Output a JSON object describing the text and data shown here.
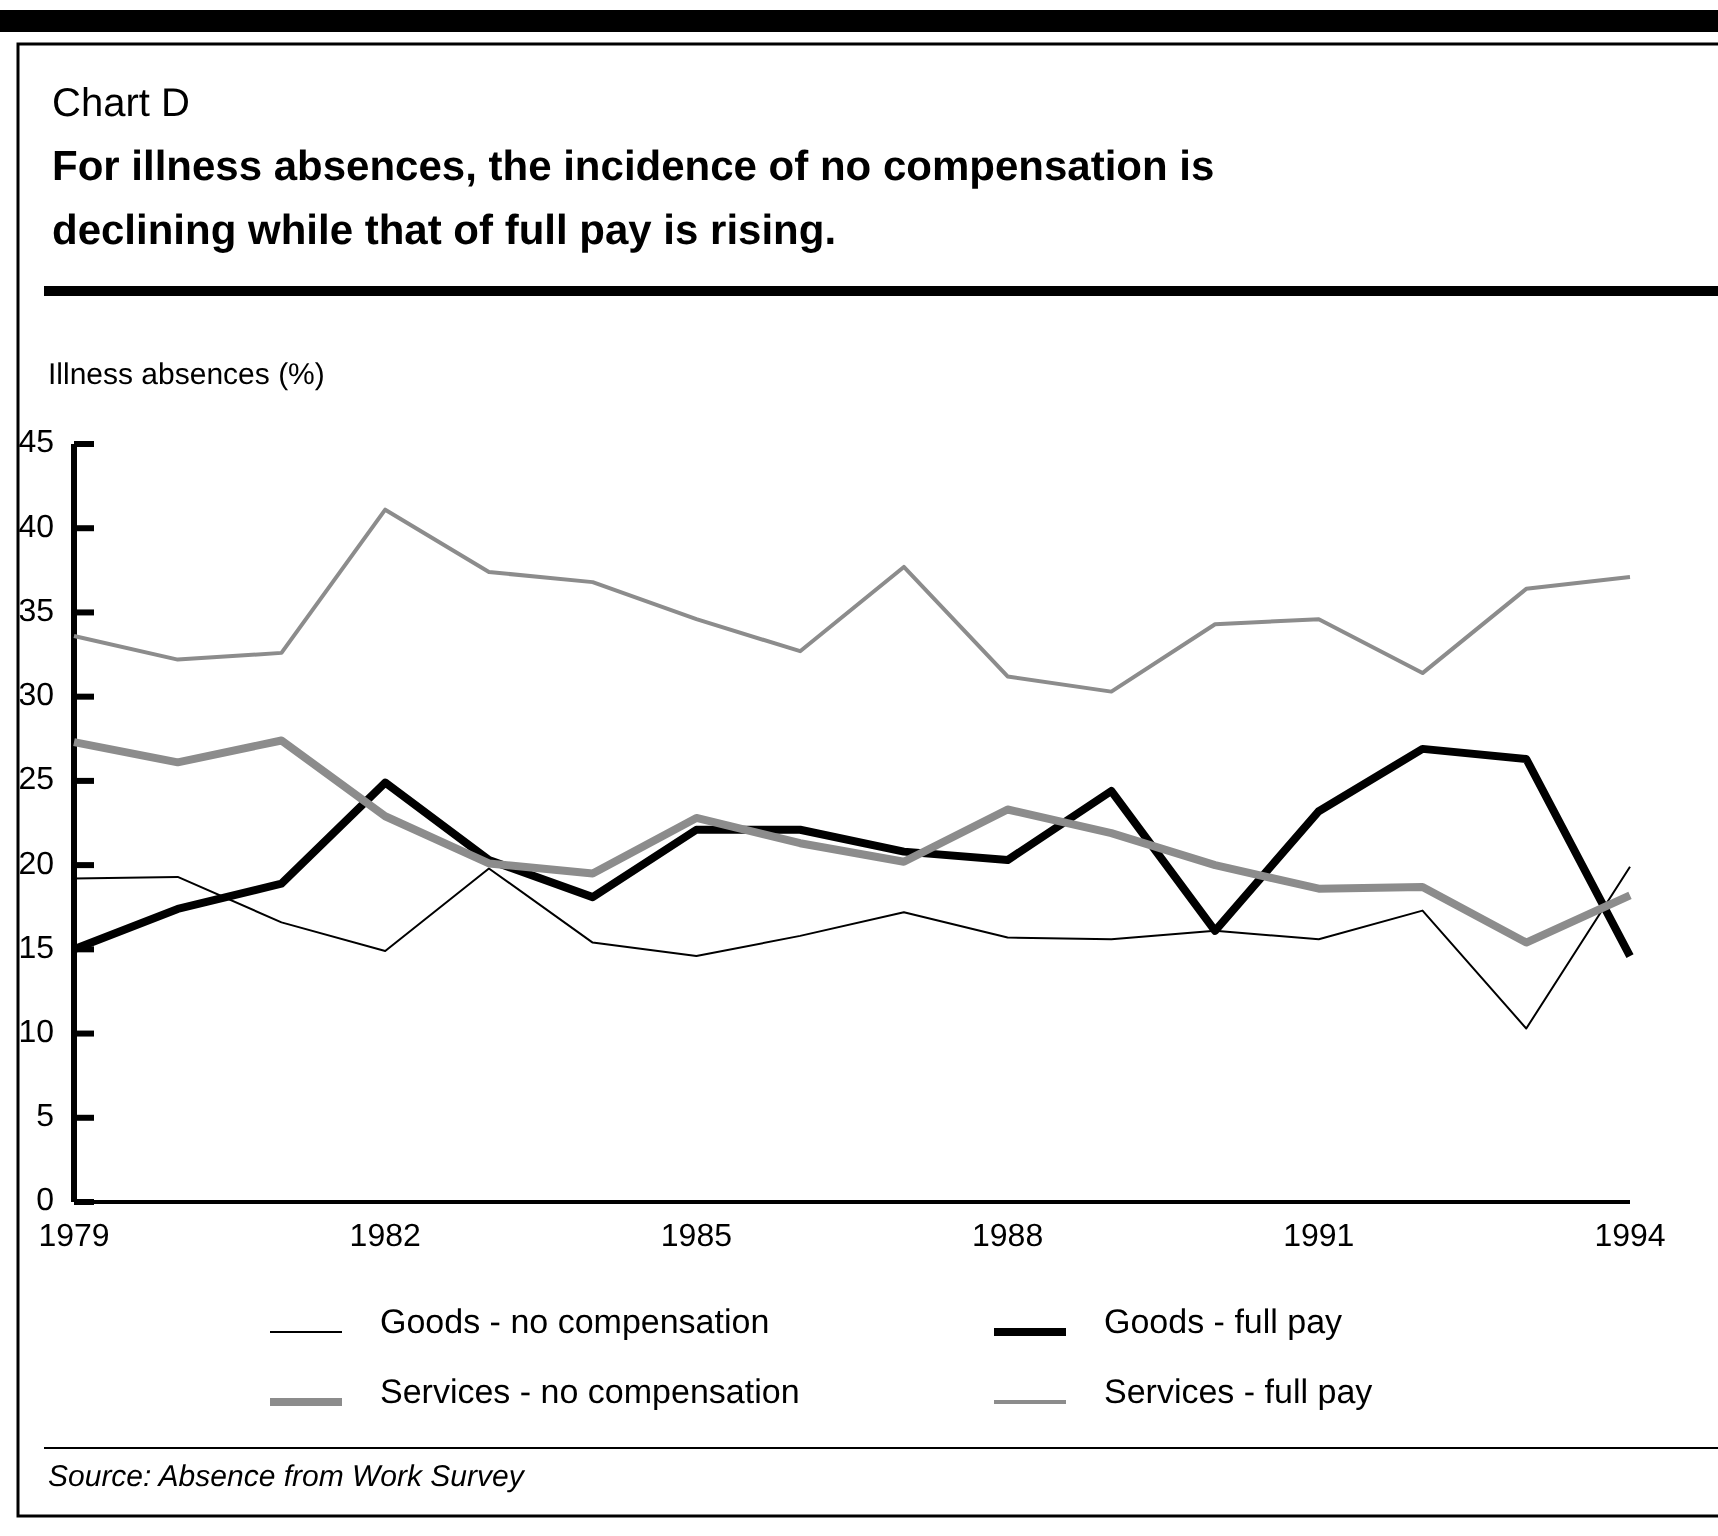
{
  "chart_data": {
    "type": "line",
    "subtitle": "Chart D",
    "title": "For illness absences, the incidence of no compensation is declining while that of full pay is rising.",
    "ylabel": "Illness absences (%)",
    "x": [
      1979,
      1980,
      1981,
      1982,
      1983,
      1984,
      1985,
      1986,
      1987,
      1988,
      1989,
      1990,
      1991,
      1992,
      1993,
      1994
    ],
    "xlim": [
      1979,
      1994
    ],
    "xticks": [
      1979,
      1982,
      1985,
      1988,
      1991,
      1994
    ],
    "ylim": [
      0,
      45
    ],
    "yticks": [
      0,
      5,
      10,
      15,
      20,
      25,
      30,
      35,
      40,
      45
    ],
    "grid": false,
    "legend": "bottom",
    "marker": "none",
    "line_style": "solid",
    "series": [
      {
        "name": "Goods - no compensation",
        "color": "#000000",
        "values": [
          19.2,
          19.3,
          16.6,
          14.9,
          19.8,
          15.4,
          14.6,
          15.8,
          17.2,
          15.7,
          15.6,
          16.1,
          15.6,
          17.3,
          10.3,
          19.9
        ]
      },
      {
        "name": "Goods - full pay",
        "color": "#000000",
        "values": [
          15.0,
          17.4,
          18.9,
          24.9,
          20.3,
          18.1,
          22.1,
          22.1,
          20.8,
          20.3,
          24.4,
          16.1,
          23.2,
          26.9,
          26.3,
          14.6
        ]
      },
      {
        "name": "Services - no compensation",
        "color": "#8c8c8c",
        "values": [
          27.3,
          26.1,
          27.4,
          22.9,
          20.1,
          19.5,
          22.8,
          21.3,
          20.2,
          23.3,
          21.9,
          20.0,
          18.6,
          18.7,
          15.4,
          18.2
        ]
      },
      {
        "name": "Services - full pay",
        "color": "#8c8c8c",
        "values": [
          33.6,
          32.2,
          32.6,
          41.1,
          37.4,
          36.8,
          34.6,
          32.7,
          37.7,
          31.2,
          30.3,
          34.3,
          34.6,
          31.4,
          36.4,
          37.1
        ]
      }
    ],
    "annotations": [
      "Source: Absence from Work Survey"
    ]
  }
}
